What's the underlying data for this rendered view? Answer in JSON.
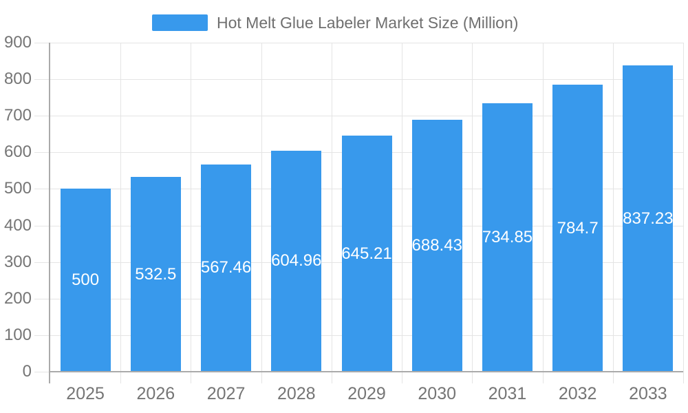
{
  "window": {
    "background": "#ffffff"
  },
  "colors": {
    "bar": "#3899ec",
    "axis_line": "#aaaaaa",
    "grid_line": "#e4e4e4",
    "axis_label": "#757575",
    "title_text": "#6f6f6f",
    "value_label": "#ffffff"
  },
  "chart_data": {
    "type": "bar",
    "title": "Hot Melt Glue Labeler Market Size (Million)",
    "series_name": "Hot Melt Glue Labeler Market Size (Million)",
    "categories": [
      "2025",
      "2026",
      "2027",
      "2028",
      "2029",
      "2030",
      "2031",
      "2032",
      "2033"
    ],
    "values": [
      500,
      532.5,
      567.46,
      604.96,
      645.21,
      688.43,
      734.85,
      784.7,
      837.23
    ],
    "value_labels": [
      "500",
      "532.5",
      "567.46",
      "604.96",
      "645.21",
      "688.43",
      "734.85",
      "784.7",
      "837.23"
    ],
    "ytick_labels": [
      "0",
      "100",
      "200",
      "300",
      "400",
      "500",
      "600",
      "700",
      "800",
      "900"
    ],
    "xlabel": "",
    "ylabel": "",
    "ylim": [
      0,
      900
    ],
    "ytick_step": 100,
    "grid": true,
    "legend_position": "top-center",
    "value_label_position": "inside-center"
  }
}
